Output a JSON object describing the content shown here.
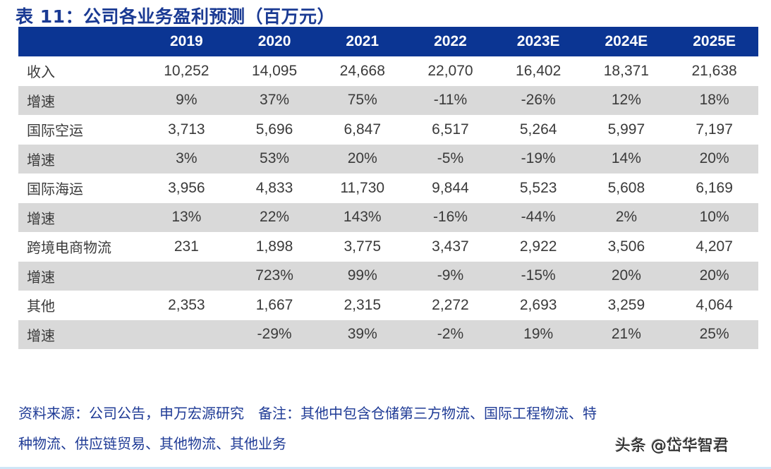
{
  "title": "表 11：公司各业务盈利预测（百万元）",
  "table": {
    "headers": [
      "",
      "2019",
      "2020",
      "2021",
      "2022",
      "2023E",
      "2024E",
      "2025E"
    ],
    "rows": [
      {
        "label": "收入",
        "values": [
          "10,252",
          "14,095",
          "24,668",
          "22,070",
          "16,402",
          "18,371",
          "21,638"
        ]
      },
      {
        "label": "增速",
        "values": [
          "9%",
          "37%",
          "75%",
          "-11%",
          "-26%",
          "12%",
          "18%"
        ]
      },
      {
        "label": "国际空运",
        "values": [
          "3,713",
          "5,696",
          "6,847",
          "6,517",
          "5,264",
          "5,997",
          "7,197"
        ]
      },
      {
        "label": "增速",
        "values": [
          "3%",
          "53%",
          "20%",
          "-5%",
          "-19%",
          "14%",
          "20%"
        ]
      },
      {
        "label": "国际海运",
        "values": [
          "3,956",
          "4,833",
          "11,730",
          "9,844",
          "5,523",
          "5,608",
          "6,169"
        ]
      },
      {
        "label": "增速",
        "values": [
          "13%",
          "22%",
          "143%",
          "-16%",
          "-44%",
          "2%",
          "10%"
        ]
      },
      {
        "label": "跨境电商物流",
        "values": [
          "231",
          "1,898",
          "3,775",
          "3,437",
          "2,922",
          "3,506",
          "4,207"
        ]
      },
      {
        "label": "增速",
        "values": [
          "",
          "723%",
          "99%",
          "-9%",
          "-15%",
          "20%",
          "20%"
        ]
      },
      {
        "label": "其他",
        "values": [
          "2,353",
          "1,667",
          "2,315",
          "2,272",
          "2,693",
          "3,259",
          "4,064"
        ]
      },
      {
        "label": "增速",
        "values": [
          "",
          "-29%",
          "39%",
          "-2%",
          "19%",
          "21%",
          "25%"
        ]
      }
    ]
  },
  "footnote": {
    "line1": "资料来源：公司公告，申万宏源研究　备注：其他中包含仓储第三方物流、国际工程物流、特",
    "line2": "种物流、供应链贸易、其他物流、其他业务"
  },
  "watermark": "头条 @岱华智君",
  "colors": {
    "header_bg": "#0b3593",
    "stripe": "#d9d9d9",
    "title": "#1a3a93"
  }
}
